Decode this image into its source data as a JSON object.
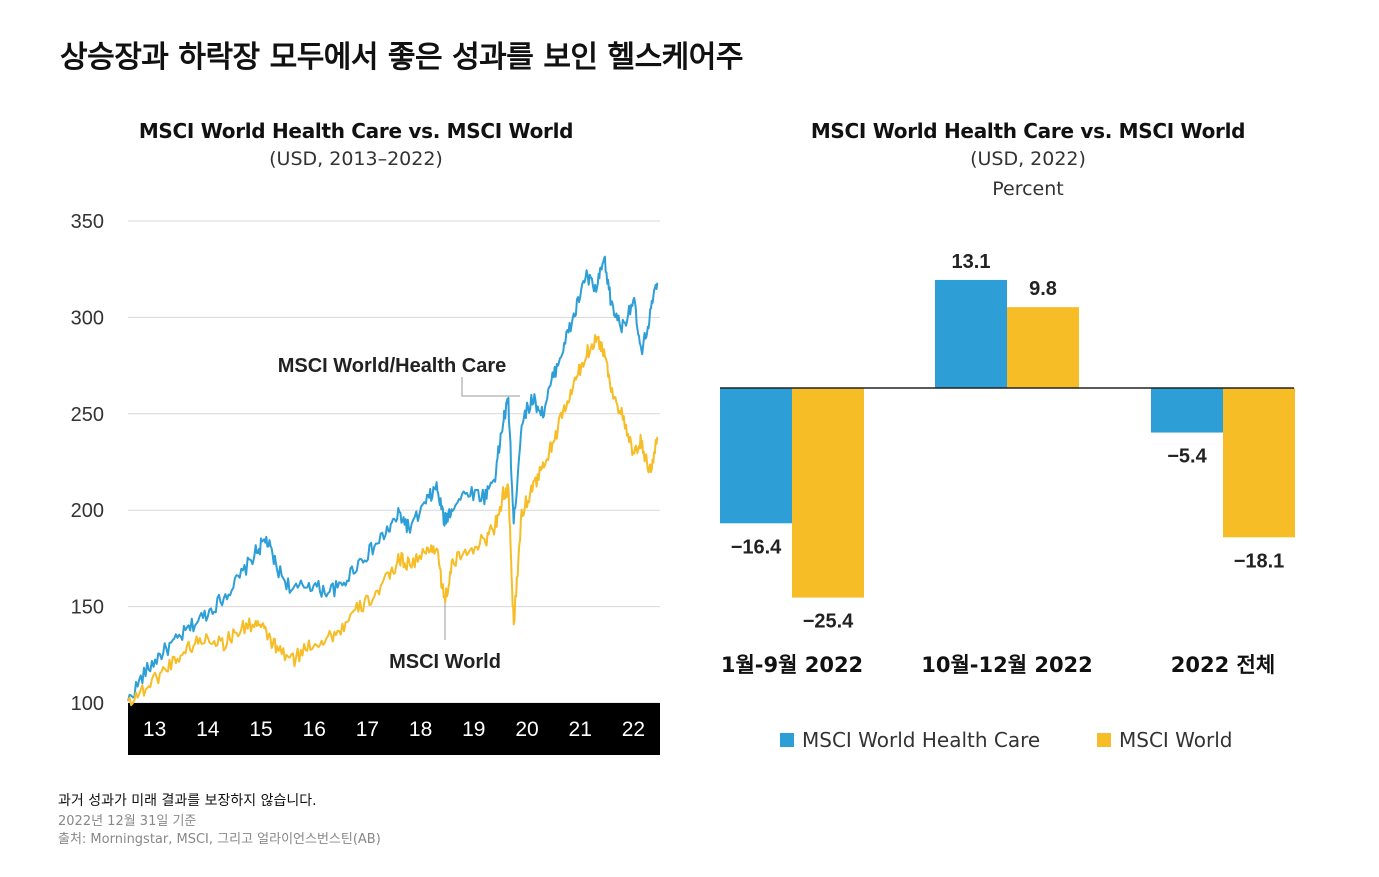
{
  "headline": "상승장과 하락장 모두에서 좋은 성과를 보인 헬스케어주",
  "colors": {
    "health_care": "#2e9fd6",
    "world": "#f6bd26",
    "axis_band": "#000000",
    "grid": "#d8d8d8"
  },
  "left_chart": {
    "title": "MSCI World Health Care vs. MSCI World",
    "subtitle": "(USD, 2013–2022)"
  },
  "right_chart": {
    "title": "MSCI World Health Care vs. MSCI World",
    "subtitle": "(USD, 2022)",
    "unit": "Percent"
  },
  "legend": [
    "MSCI World Health Care",
    "MSCI World"
  ],
  "footnotes": {
    "disclaimer": "과거 성과가 미래 결과를 보장하지 않습니다.",
    "date": "2022년 12월 31일 기준",
    "source": "출처: Morningstar, MSCI, 그리고 얼라이언스번스틴(AB)"
  },
  "chart_data": [
    {
      "type": "line",
      "ylim": [
        100,
        350
      ],
      "yticks": [
        "100",
        "150",
        "200",
        "250",
        "300",
        "350"
      ],
      "xlim": [
        2013.0,
        2023.0
      ],
      "xticks": [
        {
          "label": "13",
          "x": 2013.5
        },
        {
          "label": "14",
          "x": 2014.5
        },
        {
          "label": "15",
          "x": 2015.5
        },
        {
          "label": "16",
          "x": 2016.5
        },
        {
          "label": "17",
          "x": 2017.5
        },
        {
          "label": "18",
          "x": 2018.5
        },
        {
          "label": "19",
          "x": 2019.5
        },
        {
          "label": "20",
          "x": 2020.5
        },
        {
          "label": "21",
          "x": 2021.5
        },
        {
          "label": "22",
          "x": 2022.5
        }
      ],
      "grid": true,
      "annotations": [
        {
          "text": "MSCI World/Health Care",
          "series": "MSCI World Health Care"
        },
        {
          "text": "MSCI World",
          "series": "MSCI World"
        }
      ],
      "series": [
        {
          "name": "MSCI World Health Care",
          "color": "#2e9fd6",
          "x": [
            2013.0,
            2013.3,
            2013.6,
            2013.9,
            2014.2,
            2014.5,
            2014.8,
            2015.1,
            2015.4,
            2015.6,
            2015.8,
            2016.1,
            2016.4,
            2016.7,
            2017.0,
            2017.3,
            2017.6,
            2017.9,
            2018.1,
            2018.3,
            2018.6,
            2018.8,
            2018.95,
            2019.1,
            2019.4,
            2019.7,
            2019.9,
            2020.05,
            2020.15,
            2020.25,
            2020.4,
            2020.6,
            2020.8,
            2021.0,
            2021.2,
            2021.4,
            2021.6,
            2021.8,
            2021.95,
            2022.1,
            2022.3,
            2022.5,
            2022.65,
            2022.8,
            2022.95
          ],
          "y": [
            101,
            115,
            125,
            132,
            140,
            147,
            155,
            165,
            178,
            185,
            170,
            158,
            162,
            158,
            160,
            172,
            180,
            190,
            198,
            190,
            204,
            212,
            194,
            202,
            210,
            207,
            218,
            246,
            257,
            192,
            246,
            258,
            250,
            270,
            286,
            302,
            322,
            314,
            330,
            305,
            295,
            310,
            280,
            300,
            318
          ]
        },
        {
          "name": "MSCI World",
          "color": "#f6bd26",
          "x": [
            2013.0,
            2013.3,
            2013.6,
            2013.9,
            2014.2,
            2014.5,
            2014.8,
            2015.1,
            2015.4,
            2015.6,
            2015.8,
            2016.1,
            2016.4,
            2016.7,
            2017.0,
            2017.3,
            2017.6,
            2017.9,
            2018.1,
            2018.3,
            2018.6,
            2018.8,
            2018.95,
            2019.1,
            2019.4,
            2019.7,
            2019.9,
            2020.05,
            2020.15,
            2020.25,
            2020.4,
            2020.6,
            2020.8,
            2021.0,
            2021.2,
            2021.4,
            2021.6,
            2021.8,
            2021.95,
            2022.1,
            2022.3,
            2022.5,
            2022.65,
            2022.8,
            2022.95
          ],
          "y": [
            101,
            107,
            115,
            123,
            130,
            134,
            131,
            138,
            142,
            136,
            128,
            122,
            130,
            133,
            138,
            148,
            155,
            165,
            175,
            172,
            178,
            182,
            152,
            172,
            180,
            184,
            192,
            208,
            210,
            140,
            198,
            212,
            222,
            236,
            252,
            266,
            280,
            290,
            282,
            262,
            248,
            228,
            236,
            218,
            238
          ]
        }
      ]
    },
    {
      "type": "bar",
      "categories": [
        "1월-9월 2022",
        "10월-12월 2022",
        "2022 전체"
      ],
      "series": [
        {
          "name": "MSCI World Health Care",
          "color": "#2e9fd6",
          "values": [
            -16.4,
            13.1,
            -5.4
          ],
          "labels": [
            "−16.4",
            "13.1",
            "−5.4"
          ]
        },
        {
          "name": "MSCI World",
          "color": "#f6bd26",
          "values": [
            -25.4,
            9.8,
            -18.1
          ],
          "labels": [
            "−25.4",
            "9.8",
            "−18.1"
          ]
        }
      ],
      "ylim": [
        -27,
        15
      ],
      "legend": "bottom"
    }
  ]
}
